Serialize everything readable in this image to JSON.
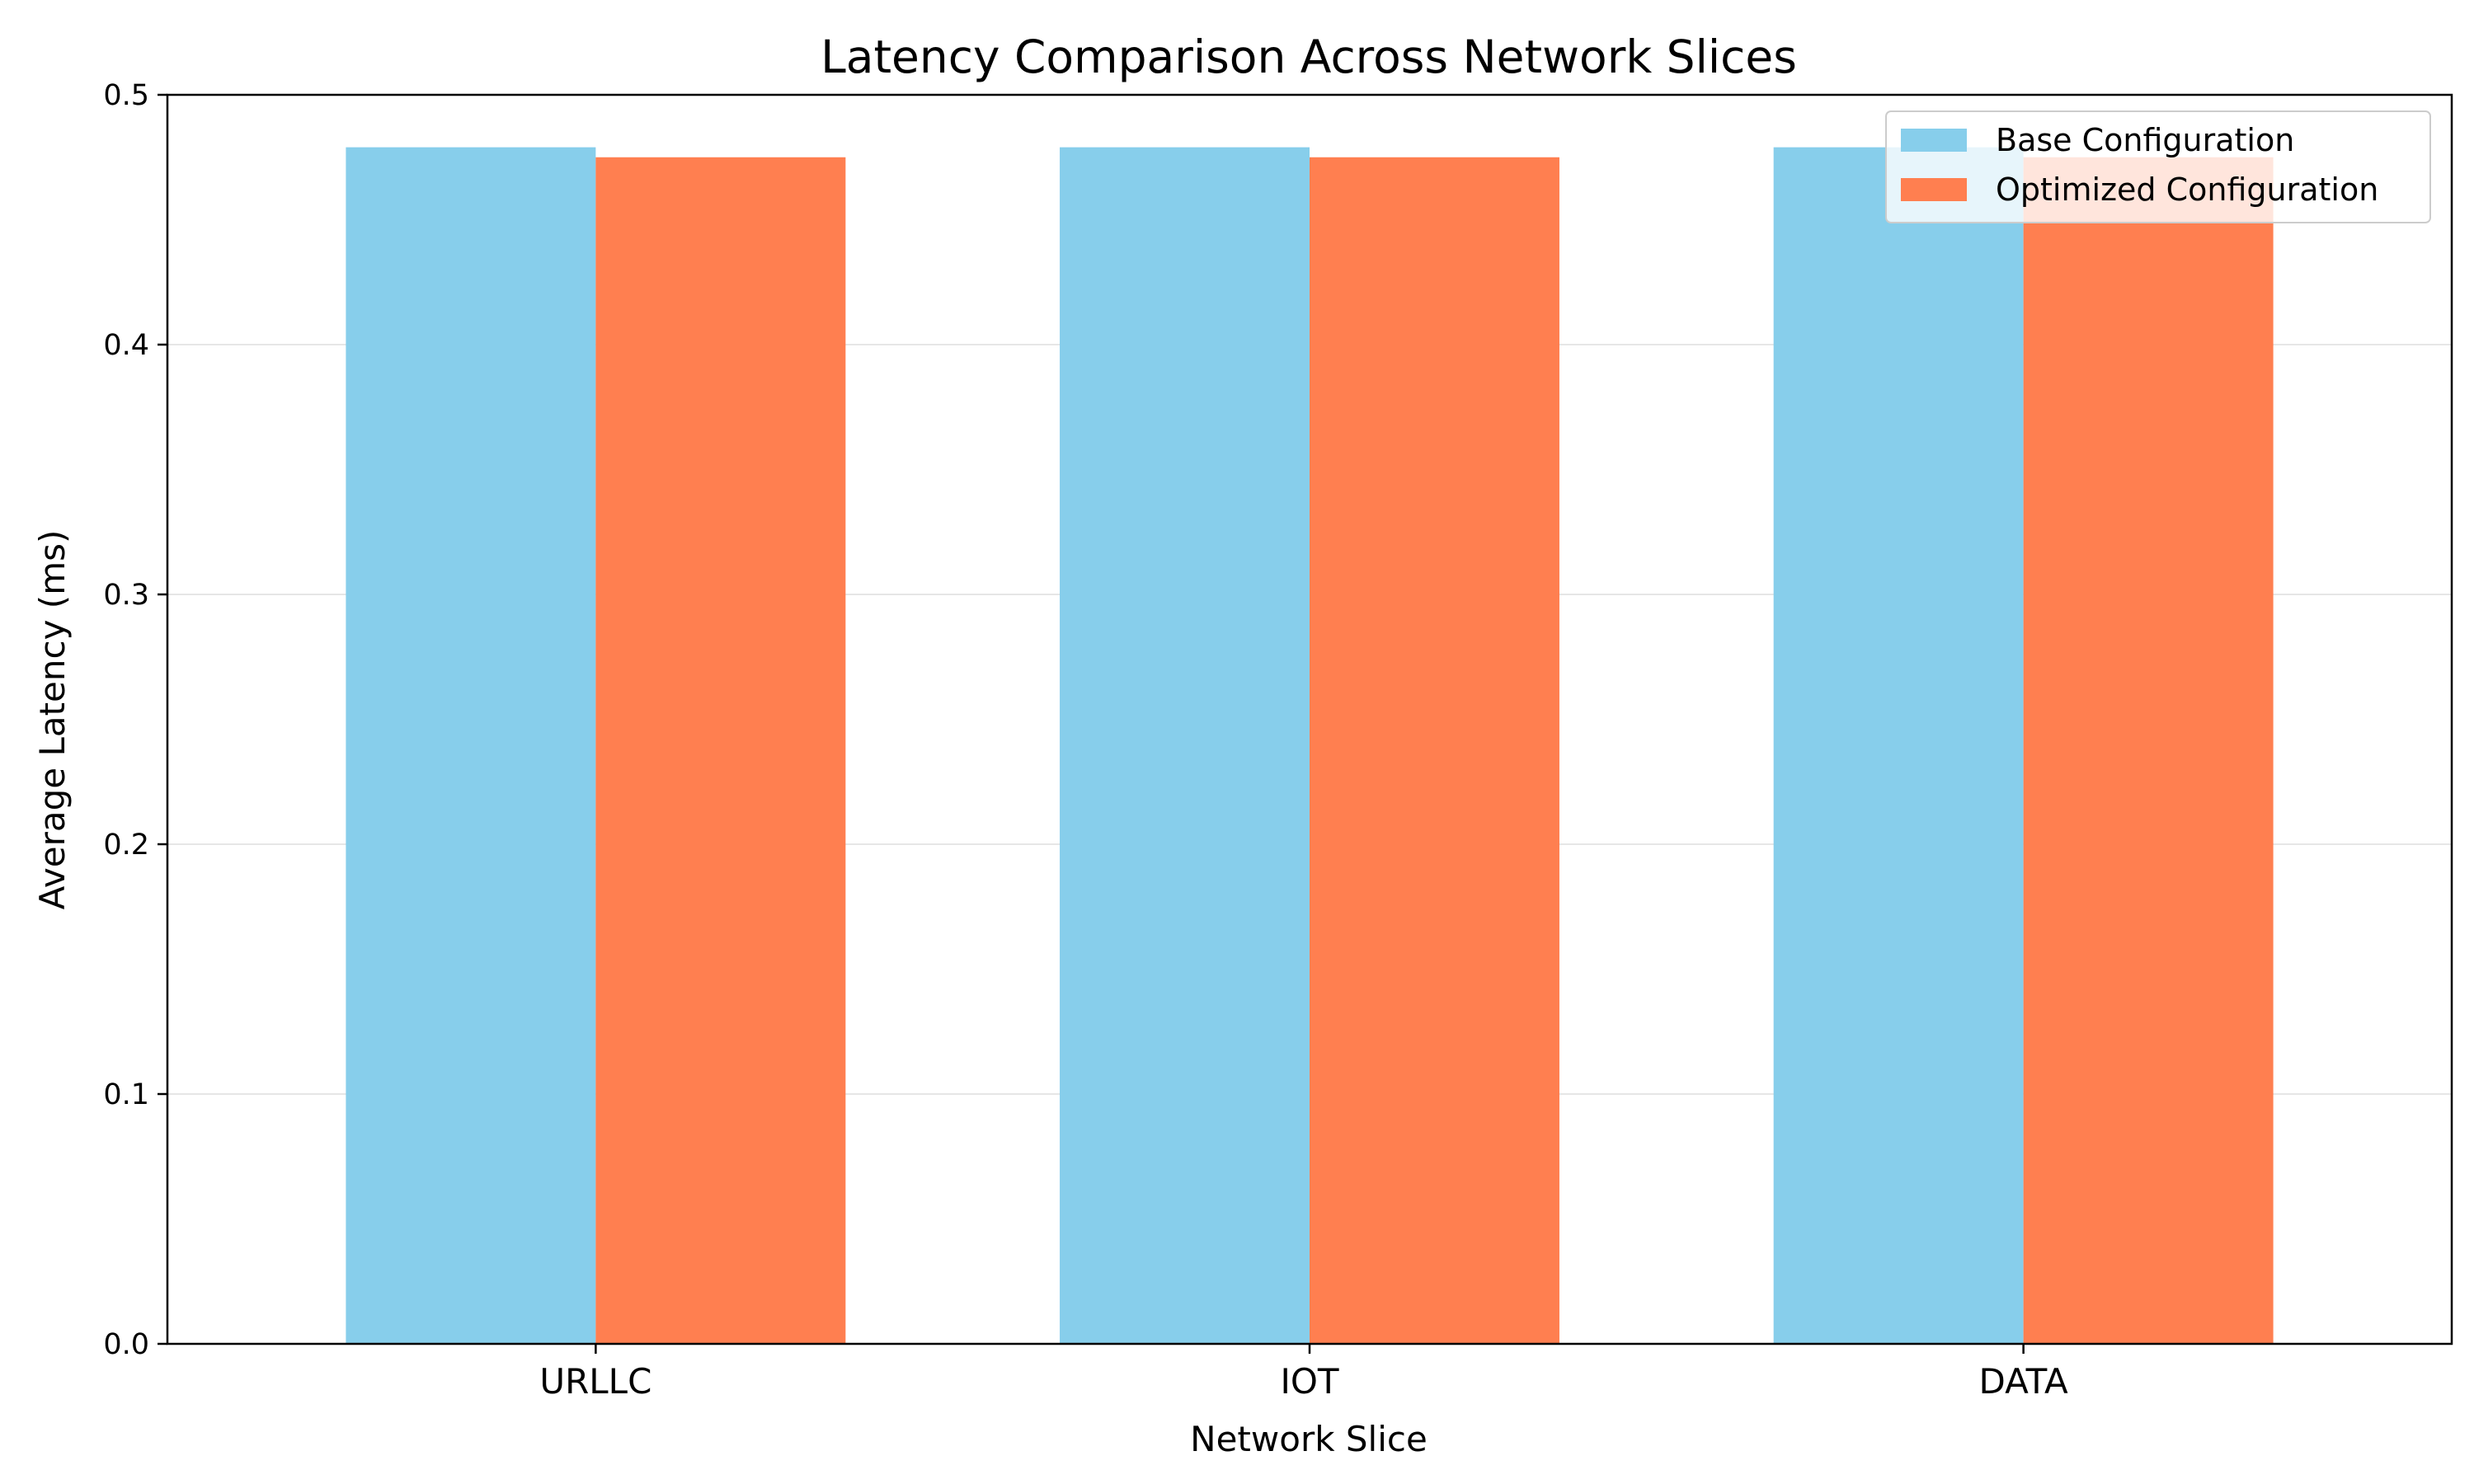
{
  "chart_data": {
    "type": "bar",
    "title": "Latency Comparison Across Network Slices",
    "xlabel": "Network Slice",
    "ylabel": "Average Latency (ms)",
    "categories": [
      "URLLC",
      "IOT",
      "DATA"
    ],
    "series": [
      {
        "name": "Base Configuration",
        "values": [
          0.479,
          0.479,
          0.479
        ],
        "color": "#87CEEB"
      },
      {
        "name": "Optimized Configuration",
        "values": [
          0.475,
          0.475,
          0.475
        ],
        "color": "#FF7F50"
      }
    ],
    "ylim": [
      0,
      0.5
    ],
    "yticks": [
      "0.0",
      "0.1",
      "0.2",
      "0.3",
      "0.4",
      "0.5"
    ],
    "grid": "y",
    "legend_position": "top-right"
  }
}
